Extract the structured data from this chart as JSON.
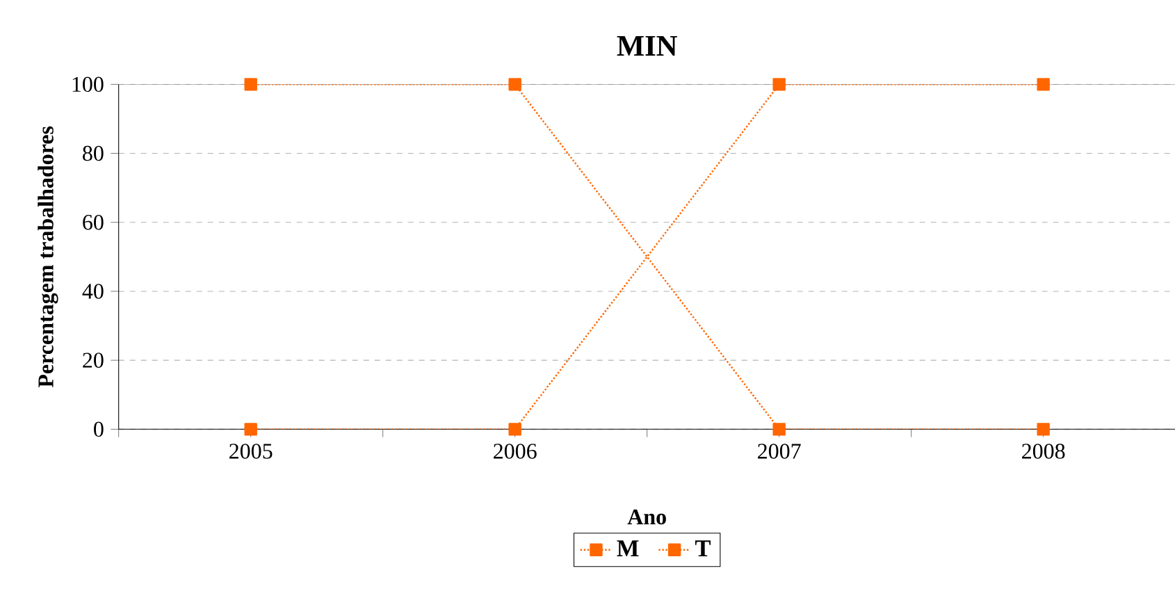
{
  "chart_data": {
    "type": "line",
    "title": "MIN",
    "xlabel": "Ano",
    "ylabel": "Percentagem trabalhadores",
    "categories": [
      "2005",
      "2006",
      "2007",
      "2008"
    ],
    "series": [
      {
        "name": "M",
        "color": "#ff6600",
        "values": [
          100,
          100,
          0,
          0
        ]
      },
      {
        "name": "T",
        "color": "#ff6600",
        "values": [
          0,
          0,
          100,
          100
        ]
      }
    ],
    "ylim": [
      0,
      100
    ],
    "yticks": [
      0,
      20,
      40,
      60,
      80,
      100
    ],
    "grid": "y",
    "legend": "bottom",
    "marker": "square",
    "line_style": "dotted"
  }
}
